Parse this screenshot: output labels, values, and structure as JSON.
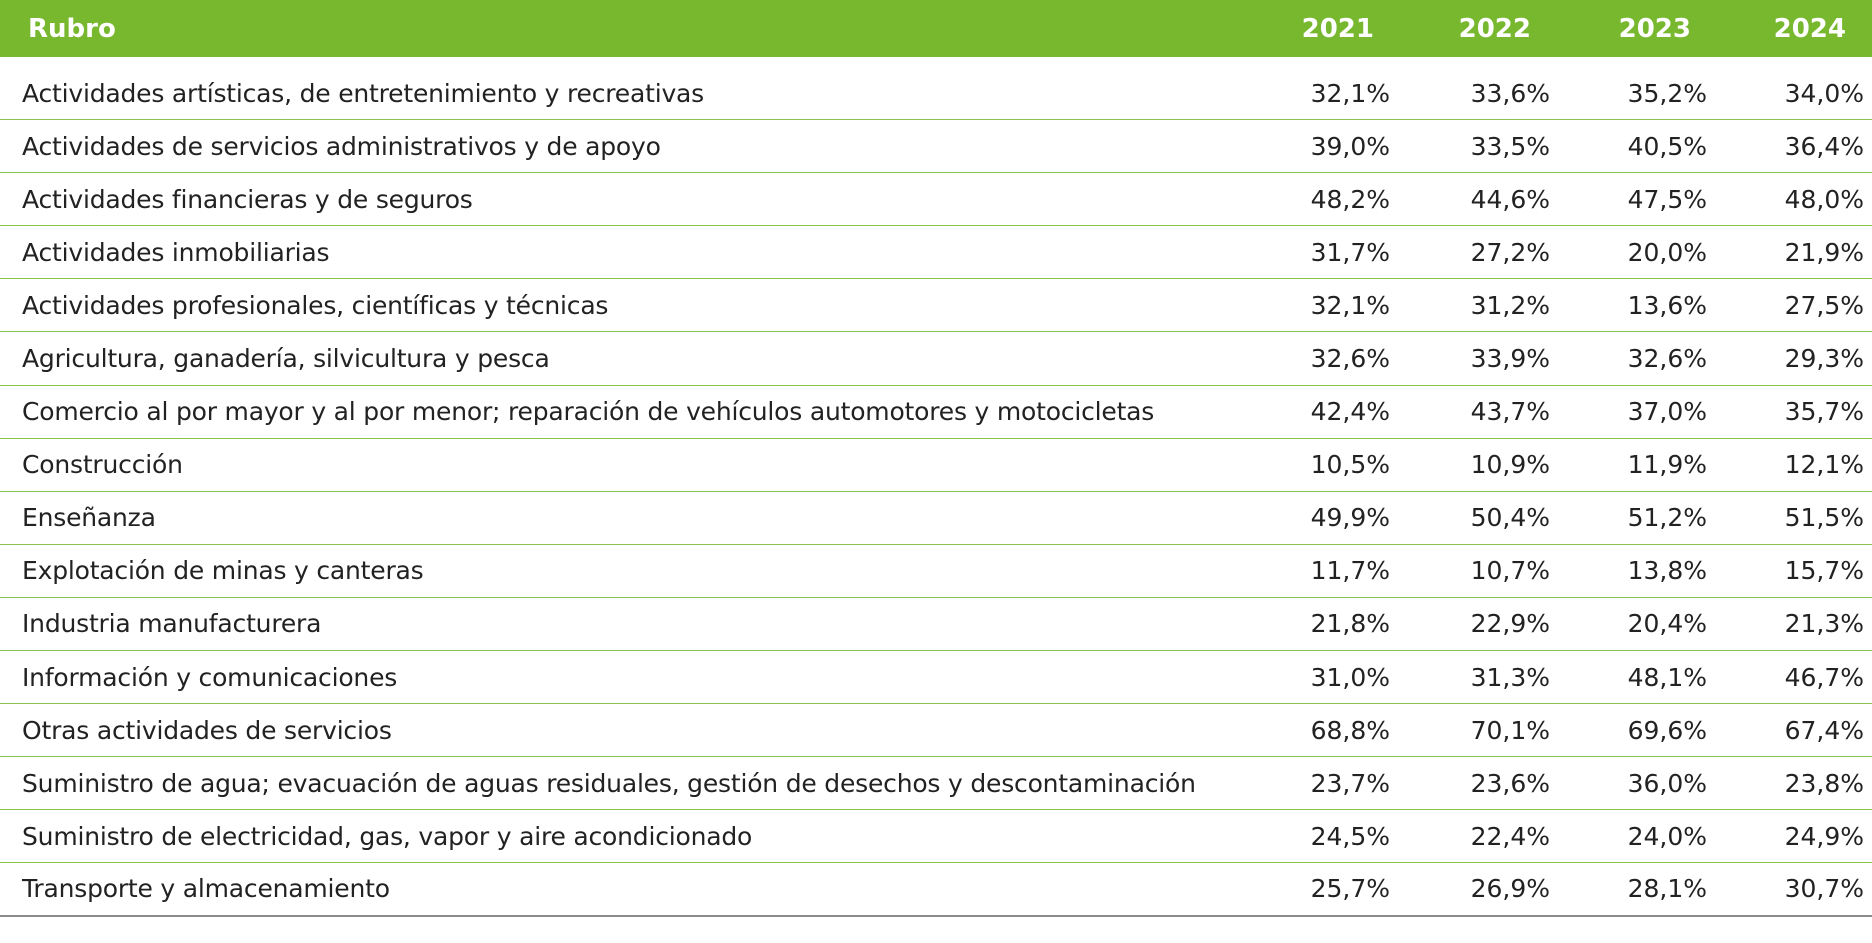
{
  "header": {
    "label": "Rubro",
    "years": [
      "2021",
      "2022",
      "2023",
      "2024"
    ]
  },
  "rows": [
    {
      "label": "Actividades artísticas, de entretenimiento y recreativas",
      "values": [
        "32,1%",
        "33,6%",
        "35,2%",
        "34,0%"
      ]
    },
    {
      "label": "Actividades de servicios administrativos y de apoyo",
      "values": [
        "39,0%",
        "33,5%",
        "40,5%",
        "36,4%"
      ]
    },
    {
      "label": "Actividades financieras y de seguros",
      "values": [
        "48,2%",
        "44,6%",
        "47,5%",
        "48,0%"
      ]
    },
    {
      "label": "Actividades inmobiliarias",
      "values": [
        "31,7%",
        "27,2%",
        "20,0%",
        "21,9%"
      ]
    },
    {
      "label": "Actividades profesionales, científicas y técnicas",
      "values": [
        "32,1%",
        "31,2%",
        "13,6%",
        "27,5%"
      ]
    },
    {
      "label": "Agricultura, ganadería, silvicultura y pesca",
      "values": [
        "32,6%",
        "33,9%",
        "32,6%",
        "29,3%"
      ]
    },
    {
      "label": "Comercio al por mayor y al por menor; reparación de vehículos automotores y motocicletas",
      "values": [
        "42,4%",
        "43,7%",
        "37,0%",
        "35,7%"
      ]
    },
    {
      "label": "Construcción",
      "values": [
        "10,5%",
        "10,9%",
        "11,9%",
        "12,1%"
      ]
    },
    {
      "label": "Enseñanza",
      "values": [
        "49,9%",
        "50,4%",
        "51,2%",
        "51,5%"
      ]
    },
    {
      "label": "Explotación de minas y canteras",
      "values": [
        "11,7%",
        "10,7%",
        "13,8%",
        "15,7%"
      ]
    },
    {
      "label": "Industria manufacturera",
      "values": [
        "21,8%",
        "22,9%",
        "20,4%",
        "21,3%"
      ]
    },
    {
      "label": "Información y comunicaciones",
      "values": [
        "31,0%",
        "31,3%",
        "48,1%",
        "46,7%"
      ]
    },
    {
      "label": "Otras actividades de servicios",
      "values": [
        "68,8%",
        "70,1%",
        "69,6%",
        "67,4%"
      ]
    },
    {
      "label": "Suministro de agua; evacuación de aguas residuales, gestión de desechos y descontaminación",
      "values": [
        "23,7%",
        "23,6%",
        "36,0%",
        "23,8%"
      ]
    },
    {
      "label": "Suministro de electricidad, gas, vapor y aire acondicionado",
      "values": [
        "24,5%",
        "22,4%",
        "24,0%",
        "24,9%"
      ]
    },
    {
      "label": "Transporte y almacenamiento",
      "values": [
        "25,7%",
        "26,9%",
        "28,1%",
        "30,7%"
      ]
    }
  ],
  "colors": {
    "header_bg": "#77b82e",
    "row_divider": "#8cc350",
    "bottom_border": "#8a8a8a"
  }
}
